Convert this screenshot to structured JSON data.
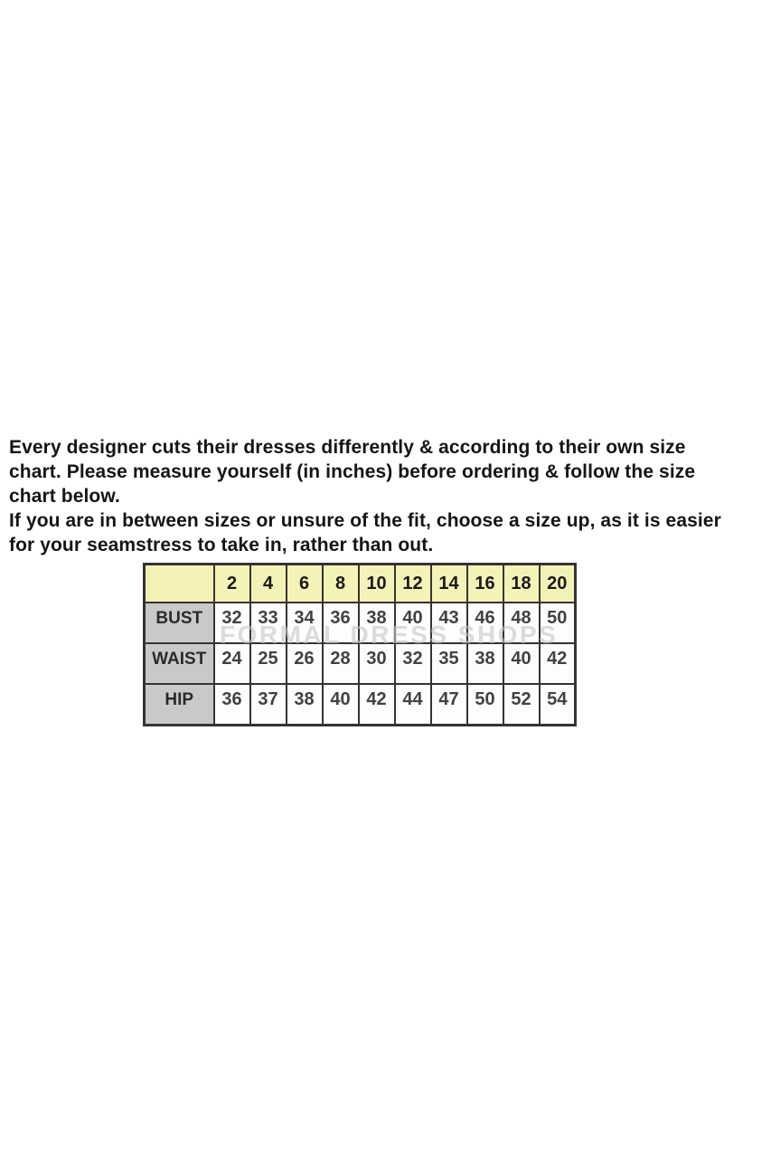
{
  "intro": {
    "lines": [
      "Every designer cuts their dresses differently & according to their own size",
      "chart. Please measure yourself (in inches) before ordering & follow the size",
      "chart below.",
      "If you are in between sizes or unsure of the fit, choose a size up, as it is easier",
      "for your seamstress to take in, rather than out."
    ]
  },
  "size_chart": {
    "corner_label": "",
    "columns": [
      "2",
      "4",
      "6",
      "8",
      "10",
      "12",
      "14",
      "16",
      "18",
      "20"
    ],
    "rows": [
      {
        "label": "BUST",
        "values": [
          "32",
          "33",
          "34",
          "36",
          "38",
          "40",
          "43",
          "46",
          "48",
          "50"
        ]
      },
      {
        "label": "WAIST",
        "values": [
          "24",
          "25",
          "26",
          "28",
          "30",
          "32",
          "35",
          "38",
          "40",
          "42"
        ]
      },
      {
        "label": "HIP",
        "values": [
          "36",
          "37",
          "38",
          "40",
          "42",
          "44",
          "47",
          "50",
          "52",
          "54"
        ]
      }
    ]
  },
  "watermark": {
    "text": "FORMAL DRESS SHOPS"
  },
  "colors": {
    "header_bg": "#f5f2b7",
    "label_bg": "#c9c9c9",
    "border": "#343434",
    "watermark": "#c6c6c6"
  }
}
